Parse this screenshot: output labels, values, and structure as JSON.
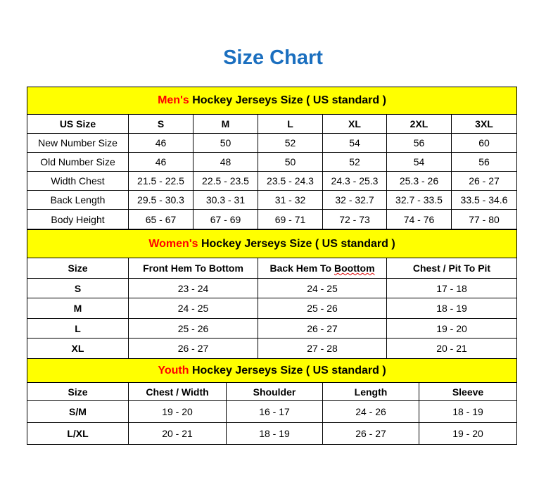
{
  "title": "Size Chart",
  "colors": {
    "title": "#1b6fbf",
    "section_bg": "#ffff00",
    "section_highlight": "#ff0000"
  },
  "mens": {
    "highlight": "Men's",
    "heading": " Hockey Jerseys Size ( US standard )",
    "columns": [
      "US Size",
      "S",
      "M",
      "L",
      "XL",
      "2XL",
      "3XL"
    ],
    "rows": [
      [
        "New Number Size",
        "46",
        "50",
        "52",
        "54",
        "56",
        "60"
      ],
      [
        "Old Number Size",
        "46",
        "48",
        "50",
        "52",
        "54",
        "56"
      ],
      [
        "Width Chest",
        "21.5 - 22.5",
        "22.5 - 23.5",
        "23.5 - 24.3",
        "24.3 - 25.3",
        "25.3 - 26",
        "26 - 27"
      ],
      [
        "Back Length",
        "29.5 - 30.3",
        "30.3 - 31",
        "31 - 32",
        "32 - 32.7",
        "32.7 - 33.5",
        "33.5 - 34.6"
      ],
      [
        "Body Height",
        "65 - 67",
        "67 - 69",
        "69 - 71",
        "72 - 73",
        "74 - 76",
        "77 - 80"
      ]
    ]
  },
  "womens": {
    "highlight": "Women's",
    "heading": " Hockey Jerseys Size ( US standard )",
    "columns": [
      "Size",
      "Front Hem To Bottom",
      "Back Hem To Boottom",
      "Chest / Pit To Pit"
    ],
    "rows": [
      [
        "S",
        "23 - 24",
        "24 - 25",
        "17 - 18"
      ],
      [
        "M",
        "24 - 25",
        "25 - 26",
        "18 - 19"
      ],
      [
        "L",
        "25 - 26",
        "26 - 27",
        "19 - 20"
      ],
      [
        "XL",
        "26 - 27",
        "27 - 28",
        "20 - 21"
      ]
    ]
  },
  "youth": {
    "highlight": "Youth",
    "heading": " Hockey Jerseys Size ( US standard )",
    "columns": [
      "Size",
      "Chest / Width",
      "Shoulder",
      "Length",
      "Sleeve"
    ],
    "rows": [
      [
        "S/M",
        "19 - 20",
        "16 - 17",
        "24 - 26",
        "18 - 19"
      ],
      [
        "L/XL",
        "20 - 21",
        "18 - 19",
        "26 - 27",
        "19 - 20"
      ]
    ]
  }
}
